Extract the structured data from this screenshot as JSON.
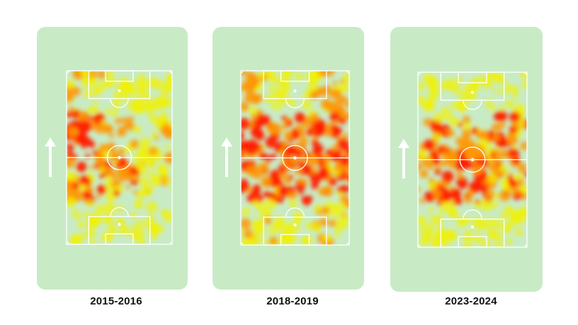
{
  "title": "",
  "direction_of_play": "arrow-up-icon",
  "colors": {
    "pitch_background": "#c8ebc6",
    "pitch_lines": "#ffffff",
    "heat_low": "#f2f200",
    "heat_mid": "#ff9400",
    "heat_high": "#ff1a00"
  },
  "panels": [
    {
      "id": "p2015",
      "label": "2015-2016",
      "focus": "left-wing, defensive half, strong on left flank"
    },
    {
      "id": "p2018",
      "label": "2018-2019",
      "focus": "wide spread across midfield band, both halves"
    },
    {
      "id": "p2023",
      "label": "2023-2024",
      "focus": "central, concentrated around centre circle"
    }
  ],
  "heat_intensity": [
    {
      "panel": "2015-2016",
      "zones": [
        {
          "row": "top-third",
          "left": 0.55,
          "center": 0.3,
          "right": 0.45
        },
        {
          "row": "upper-middle",
          "left": 0.95,
          "center": 0.6,
          "right": 0.55
        },
        {
          "row": "lower-middle",
          "left": 0.75,
          "center": 0.7,
          "right": 0.5
        },
        {
          "row": "bottom-third",
          "left": 0.35,
          "center": 0.25,
          "right": 0.35
        }
      ]
    },
    {
      "panel": "2018-2019",
      "zones": [
        {
          "row": "top-third",
          "left": 0.6,
          "center": 0.35,
          "right": 0.6
        },
        {
          "row": "upper-middle",
          "left": 0.95,
          "center": 0.85,
          "right": 0.9
        },
        {
          "row": "lower-middle",
          "left": 0.9,
          "center": 0.85,
          "right": 0.85
        },
        {
          "row": "bottom-third",
          "left": 0.55,
          "center": 0.35,
          "right": 0.55
        }
      ]
    },
    {
      "panel": "2023-2024",
      "zones": [
        {
          "row": "top-third",
          "left": 0.3,
          "center": 0.25,
          "right": 0.35
        },
        {
          "row": "upper-middle",
          "left": 0.75,
          "center": 0.7,
          "right": 0.8
        },
        {
          "row": "lower-middle",
          "left": 0.85,
          "center": 0.95,
          "right": 0.8
        },
        {
          "row": "bottom-third",
          "left": 0.4,
          "center": 0.3,
          "right": 0.35
        }
      ]
    }
  ]
}
